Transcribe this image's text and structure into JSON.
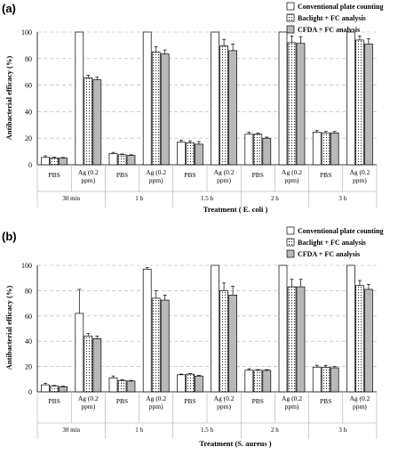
{
  "colors": {
    "plate_fill": "#ffffff",
    "baclight_fill": "#ffffff",
    "baclight_dots": "#222222",
    "cfda_fill": "#b8b8b8",
    "bar_stroke": "#000000",
    "grid": "#b0b0b0"
  },
  "chart_data": [
    {
      "type": "bar",
      "panel_label": "(a)",
      "ylabel": "Antibacterial efficacy (%)",
      "xlabel": "Treatment ( E. coli )",
      "ylim": [
        0,
        100
      ],
      "yticks": [
        0,
        20,
        40,
        60,
        80,
        100
      ],
      "grid": true,
      "legend_position": "top-right",
      "categories": [
        "PBS",
        "Ag (0.2 ppm)",
        "PBS",
        "Ag (0.2 ppm)",
        "PBS",
        "Ag (0.2 ppm)",
        "PBS",
        "Ag (0.2 ppm)",
        "PBS",
        "Ag (0.2 ppm)"
      ],
      "groups": [
        "30 min",
        "1 h",
        "1.5 h",
        "2 h",
        "3 h"
      ],
      "series": [
        {
          "name": "Conventional plate counting",
          "values": [
            5.5,
            100,
            8.5,
            100,
            17,
            100,
            23,
            100,
            24.5,
            100
          ],
          "errors": [
            1.2,
            0,
            0.8,
            0,
            1.5,
            0,
            1.5,
            0,
            1.2,
            0
          ]
        },
        {
          "name": "Baclight + FC analysis",
          "values": [
            5,
            65.5,
            7.5,
            85,
            16.5,
            89.5,
            23,
            92,
            24,
            94
          ],
          "errors": [
            0.6,
            2,
            0.6,
            4,
            1.5,
            5,
            1,
            5,
            1,
            3
          ]
        },
        {
          "name": "CFDA + FC analysis",
          "values": [
            5,
            64,
            7,
            83.5,
            15.5,
            86,
            20,
            91.5,
            24,
            91
          ],
          "errors": [
            0.5,
            2,
            0.5,
            3,
            2,
            5,
            0.8,
            5,
            1,
            4
          ]
        }
      ]
    },
    {
      "type": "bar",
      "panel_label": "(b)",
      "ylabel": "Antibacterial efficacy (%)",
      "xlabel": "Treatment (S. aureus )",
      "ylim": [
        0,
        100
      ],
      "yticks": [
        0,
        20,
        40,
        60,
        80,
        100
      ],
      "grid": true,
      "legend_position": "top-right",
      "categories": [
        "PBS",
        "Ag (0.2 ppm)",
        "PBS",
        "Ag (0.2 ppm)",
        "PBS",
        "Ag (0.2 ppm)",
        "PBS",
        "Ag (0.2 ppm)",
        "PBS",
        "Ag (0.2 ppm)"
      ],
      "groups": [
        "30 min",
        "1 h",
        "1.5 h",
        "2 h",
        "3 h"
      ],
      "series": [
        {
          "name": "Conventional plate counting",
          "values": [
            5.5,
            62,
            11,
            97,
            13.5,
            100,
            17,
            100,
            19.5,
            100
          ],
          "errors": [
            1.2,
            19,
            1.5,
            1.2,
            0.5,
            0,
            1.2,
            0,
            1.5,
            0
          ]
        },
        {
          "name": "Baclight + FC analysis",
          "values": [
            4.5,
            44,
            9,
            74,
            14,
            80,
            17,
            83,
            19.5,
            84
          ],
          "errors": [
            0.5,
            2,
            0.5,
            6,
            0.5,
            6,
            0.5,
            6,
            1.5,
            4
          ]
        },
        {
          "name": "CFDA + FC analysis",
          "values": [
            4,
            42,
            8.5,
            72.5,
            12.5,
            76.5,
            17,
            83,
            19,
            81
          ],
          "errors": [
            0.5,
            2,
            0.5,
            4,
            0.5,
            7,
            0.5,
            6,
            1,
            4
          ]
        }
      ]
    }
  ]
}
